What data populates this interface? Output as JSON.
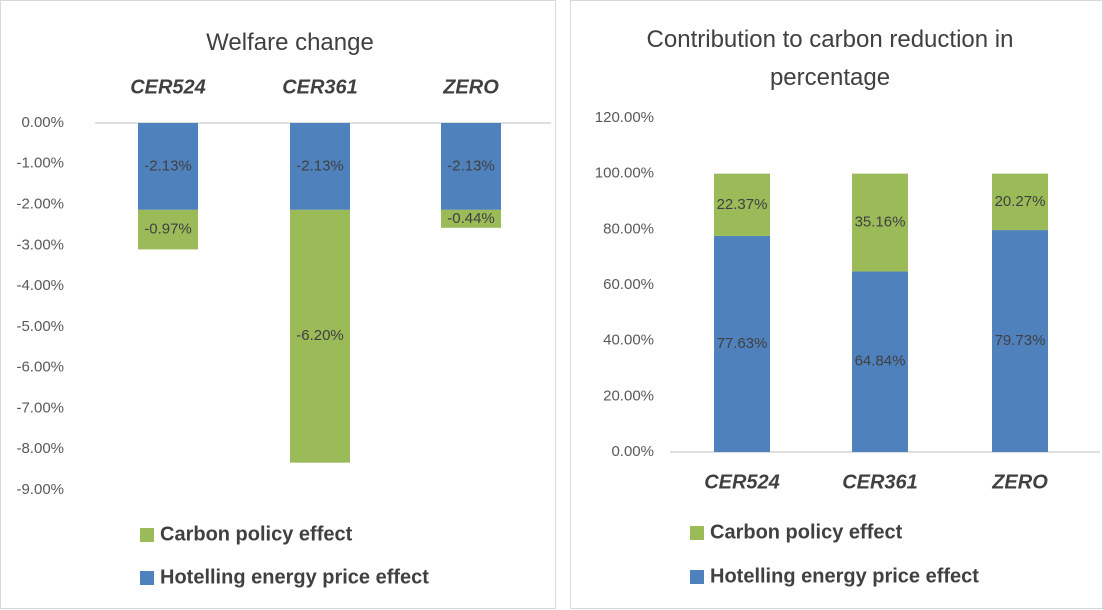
{
  "chart_data": [
    {
      "type": "bar",
      "stacked": true,
      "title": "Welfare change",
      "x_axis_position": "top",
      "categories": [
        "CER524",
        "CER361",
        "ZERO"
      ],
      "series": [
        {
          "name": "Hotelling energy price effect",
          "color": "#4f81bd",
          "values": [
            -2.13,
            -2.13,
            -2.13
          ],
          "value_labels": [
            "-2.13%",
            "-2.13%",
            "-2.13%"
          ]
        },
        {
          "name": "Carbon policy effect",
          "color": "#9bbb59",
          "values": [
            -0.97,
            -6.2,
            -0.44
          ],
          "value_labels": [
            "-0.97%",
            "-6.20%",
            "-0.44%"
          ]
        }
      ],
      "ylim": [
        -9,
        0
      ],
      "yticks": [
        {
          "value": 0,
          "label": "0.00%"
        },
        {
          "value": -1,
          "label": "-1.00%"
        },
        {
          "value": -2,
          "label": "-2.00%"
        },
        {
          "value": -3,
          "label": "-3.00%"
        },
        {
          "value": -4,
          "label": "-4.00%"
        },
        {
          "value": -5,
          "label": "-5.00%"
        },
        {
          "value": -6,
          "label": "-6.00%"
        },
        {
          "value": -7,
          "label": "-7.00%"
        },
        {
          "value": -8,
          "label": "-8.00%"
        },
        {
          "value": -9,
          "label": "-9.00%"
        }
      ],
      "grid": false
    },
    {
      "type": "bar",
      "stacked": true,
      "title": "Contribution to carbon reduction in percentage",
      "x_axis_position": "bottom",
      "categories": [
        "CER524",
        "CER361",
        "ZERO"
      ],
      "series": [
        {
          "name": "Hotelling energy price effect",
          "color": "#4f81bd",
          "values": [
            77.63,
            64.84,
            79.73
          ],
          "value_labels": [
            "77.63%",
            "64.84%",
            "79.73%"
          ]
        },
        {
          "name": "Carbon policy effect",
          "color": "#9bbb59",
          "values": [
            22.37,
            35.16,
            20.27
          ],
          "value_labels": [
            "22.37%",
            "35.16%",
            "20.27%"
          ]
        }
      ],
      "ylim": [
        0,
        120
      ],
      "yticks": [
        {
          "value": 0,
          "label": "0.00%"
        },
        {
          "value": 20,
          "label": "20.00%"
        },
        {
          "value": 40,
          "label": "40.00%"
        },
        {
          "value": 60,
          "label": "60.00%"
        },
        {
          "value": 80,
          "label": "80.00%"
        },
        {
          "value": 100,
          "label": "100.00%"
        },
        {
          "value": 120,
          "label": "120.00%"
        }
      ],
      "grid": false
    }
  ]
}
